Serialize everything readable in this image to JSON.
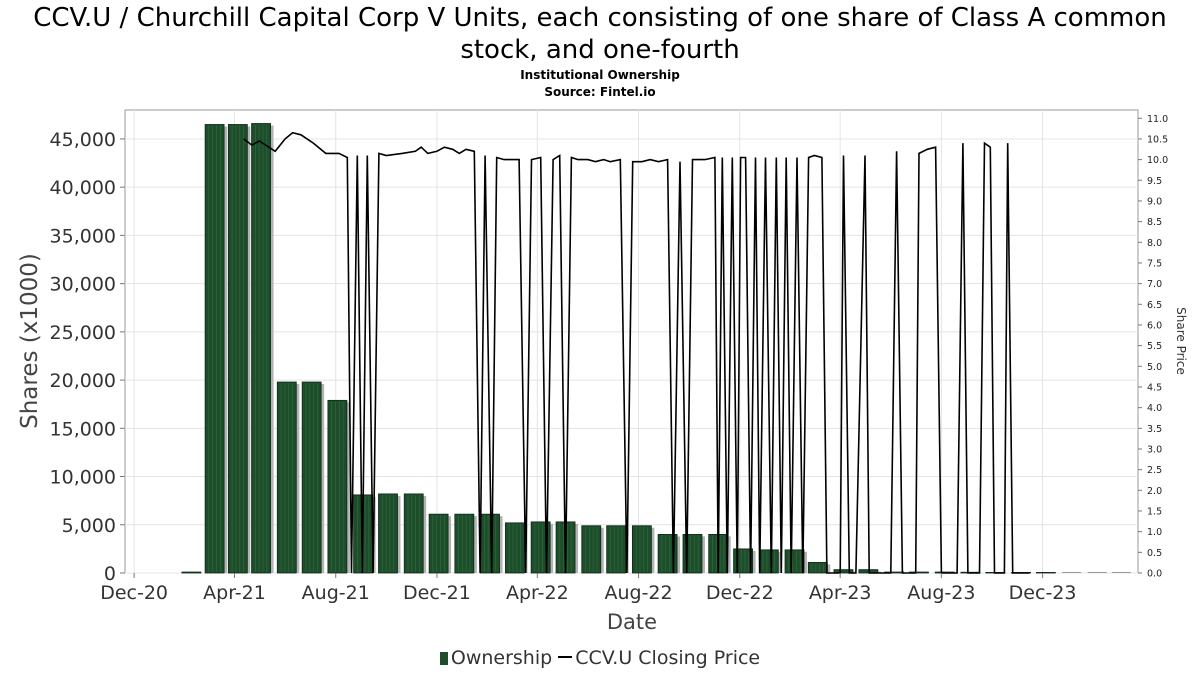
{
  "chart_data": {
    "type": "bar",
    "title": "CCV.U / Churchill Capital Corp V Units, each consisting of one share of Class A common stock, and one-fourth",
    "subtitle1": "Institutional Ownership",
    "subtitle2": "Source: Fintel.io",
    "xlabel": "Date",
    "ylabel": "Shares (x1000)",
    "y2label": "Share Price",
    "ylim": [
      0,
      48000
    ],
    "y2lim": [
      0,
      11.2
    ],
    "xlim": [
      "2020-11-20",
      "2024-03-25"
    ],
    "x_ticks": [
      {
        "date": "2020-12-01",
        "label": "Dec-20"
      },
      {
        "date": "2021-04-01",
        "label": "Apr-21"
      },
      {
        "date": "2021-08-01",
        "label": "Aug-21"
      },
      {
        "date": "2021-12-01",
        "label": "Dec-21"
      },
      {
        "date": "2022-04-01",
        "label": "Apr-22"
      },
      {
        "date": "2022-08-01",
        "label": "Aug-22"
      },
      {
        "date": "2022-12-01",
        "label": "Dec-22"
      },
      {
        "date": "2023-04-01",
        "label": "Apr-23"
      },
      {
        "date": "2023-08-01",
        "label": "Aug-23"
      },
      {
        "date": "2023-12-01",
        "label": "Dec-23"
      }
    ],
    "y_ticks": [
      0,
      5000,
      10000,
      15000,
      20000,
      25000,
      30000,
      35000,
      40000,
      45000
    ],
    "y_tick_labels": [
      "0",
      "5,000",
      "10,000",
      "15,000",
      "20,000",
      "25,000",
      "30,000",
      "35,000",
      "40,000",
      "45,000"
    ],
    "y2_ticks": [
      "0.0",
      "0.5",
      "1.0",
      "1.5",
      "2.0",
      "2.5",
      "3.0",
      "3.5",
      "4.0",
      "4.5",
      "5.0",
      "5.5",
      "6.0",
      "6.5",
      "7.0",
      "7.5",
      "8.0",
      "8.5",
      "9.0",
      "9.5",
      "10.0",
      "10.5",
      "11.0"
    ],
    "series": [
      {
        "name": "Ownership",
        "kind": "bar",
        "color": "#1e4d2b",
        "points": [
          {
            "x": "2021-02-08",
            "y": 100
          },
          {
            "x": "2021-03-08",
            "y": 46500
          },
          {
            "x": "2021-04-05",
            "y": 46500
          },
          {
            "x": "2021-05-03",
            "y": 46600
          },
          {
            "x": "2021-06-03",
            "y": 19800
          },
          {
            "x": "2021-07-03",
            "y": 19800
          },
          {
            "x": "2021-08-03",
            "y": 17900
          },
          {
            "x": "2021-09-03",
            "y": 8100
          },
          {
            "x": "2021-10-03",
            "y": 8200
          },
          {
            "x": "2021-11-03",
            "y": 8200
          },
          {
            "x": "2021-12-03",
            "y": 6100
          },
          {
            "x": "2022-01-03",
            "y": 6100
          },
          {
            "x": "2022-02-03",
            "y": 6100
          },
          {
            "x": "2022-03-05",
            "y": 5200
          },
          {
            "x": "2022-04-05",
            "y": 5300
          },
          {
            "x": "2022-05-05",
            "y": 5300
          },
          {
            "x": "2022-06-05",
            "y": 4900
          },
          {
            "x": "2022-07-05",
            "y": 4900
          },
          {
            "x": "2022-08-05",
            "y": 4900
          },
          {
            "x": "2022-09-05",
            "y": 4000
          },
          {
            "x": "2022-10-05",
            "y": 4000
          },
          {
            "x": "2022-11-05",
            "y": 4000
          },
          {
            "x": "2022-12-05",
            "y": 2500
          },
          {
            "x": "2023-01-05",
            "y": 2400
          },
          {
            "x": "2023-02-05",
            "y": 2400
          },
          {
            "x": "2023-03-05",
            "y": 1100
          },
          {
            "x": "2023-04-05",
            "y": 350
          },
          {
            "x": "2023-05-05",
            "y": 350
          },
          {
            "x": "2023-06-05",
            "y": 100
          },
          {
            "x": "2023-07-05",
            "y": 100
          },
          {
            "x": "2023-08-05",
            "y": 100
          },
          {
            "x": "2023-09-05",
            "y": 80
          },
          {
            "x": "2023-10-05",
            "y": 60
          },
          {
            "x": "2023-11-05",
            "y": 60
          },
          {
            "x": "2023-12-05",
            "y": 60
          },
          {
            "x": "2024-01-05",
            "y": 50
          },
          {
            "x": "2024-02-05",
            "y": 40
          },
          {
            "x": "2024-03-05",
            "y": 40
          }
        ]
      },
      {
        "name": "CCV.U Closing Price",
        "kind": "line",
        "axis": "right",
        "color": "#000000",
        "points": [
          {
            "x": "2021-04-12",
            "y": 10.5
          },
          {
            "x": "2021-04-22",
            "y": 10.35
          },
          {
            "x": "2021-05-01",
            "y": 10.45
          },
          {
            "x": "2021-05-20",
            "y": 10.2
          },
          {
            "x": "2021-06-01",
            "y": 10.5
          },
          {
            "x": "2021-06-10",
            "y": 10.65
          },
          {
            "x": "2021-06-20",
            "y": 10.6
          },
          {
            "x": "2021-07-05",
            "y": 10.4
          },
          {
            "x": "2021-07-20",
            "y": 10.15
          },
          {
            "x": "2021-08-05",
            "y": 10.15
          },
          {
            "x": "2021-08-15",
            "y": 10.05
          },
          {
            "x": "2021-08-20",
            "y": 0.0
          },
          {
            "x": "2021-08-27",
            "y": 10.1
          },
          {
            "x": "2021-09-02",
            "y": 0.0
          },
          {
            "x": "2021-09-08",
            "y": 10.1
          },
          {
            "x": "2021-09-15",
            "y": 0.0
          },
          {
            "x": "2021-09-22",
            "y": 10.15
          },
          {
            "x": "2021-10-01",
            "y": 10.1
          },
          {
            "x": "2021-10-20",
            "y": 10.15
          },
          {
            "x": "2021-11-05",
            "y": 10.2
          },
          {
            "x": "2021-11-12",
            "y": 10.3
          },
          {
            "x": "2021-11-20",
            "y": 10.15
          },
          {
            "x": "2021-12-01",
            "y": 10.2
          },
          {
            "x": "2021-12-10",
            "y": 10.3
          },
          {
            "x": "2021-12-20",
            "y": 10.25
          },
          {
            "x": "2021-12-28",
            "y": 10.15
          },
          {
            "x": "2022-01-05",
            "y": 10.25
          },
          {
            "x": "2022-01-15",
            "y": 10.2
          },
          {
            "x": "2022-01-22",
            "y": 0.0
          },
          {
            "x": "2022-01-28",
            "y": 10.1
          },
          {
            "x": "2022-02-05",
            "y": 0.0
          },
          {
            "x": "2022-02-11",
            "y": 10.05
          },
          {
            "x": "2022-02-20",
            "y": 10.0
          },
          {
            "x": "2022-03-01",
            "y": 10.0
          },
          {
            "x": "2022-03-10",
            "y": 10.0
          },
          {
            "x": "2022-03-18",
            "y": 0.0
          },
          {
            "x": "2022-03-25",
            "y": 10.0
          },
          {
            "x": "2022-04-05",
            "y": 10.05
          },
          {
            "x": "2022-04-12",
            "y": 0.0
          },
          {
            "x": "2022-04-20",
            "y": 10.0
          },
          {
            "x": "2022-04-28",
            "y": 10.1
          },
          {
            "x": "2022-05-05",
            "y": 0.0
          },
          {
            "x": "2022-05-12",
            "y": 10.05
          },
          {
            "x": "2022-05-20",
            "y": 10.0
          },
          {
            "x": "2022-06-01",
            "y": 10.0
          },
          {
            "x": "2022-06-10",
            "y": 9.95
          },
          {
            "x": "2022-06-20",
            "y": 10.0
          },
          {
            "x": "2022-06-28",
            "y": 9.95
          },
          {
            "x": "2022-07-10",
            "y": 10.0
          },
          {
            "x": "2022-07-18",
            "y": 0.0
          },
          {
            "x": "2022-07-25",
            "y": 9.95
          },
          {
            "x": "2022-08-05",
            "y": 9.95
          },
          {
            "x": "2022-08-15",
            "y": 10.0
          },
          {
            "x": "2022-08-25",
            "y": 9.95
          },
          {
            "x": "2022-09-05",
            "y": 10.0
          },
          {
            "x": "2022-09-12",
            "y": 0.0
          },
          {
            "x": "2022-09-20",
            "y": 9.95
          },
          {
            "x": "2022-09-28",
            "y": 0.0
          },
          {
            "x": "2022-10-05",
            "y": 10.0
          },
          {
            "x": "2022-10-20",
            "y": 10.0
          },
          {
            "x": "2022-11-01",
            "y": 10.05
          },
          {
            "x": "2022-11-05",
            "y": 0.0
          },
          {
            "x": "2022-11-10",
            "y": 10.05
          },
          {
            "x": "2022-11-16",
            "y": 0.0
          },
          {
            "x": "2022-11-22",
            "y": 10.05
          },
          {
            "x": "2022-11-28",
            "y": 0.0
          },
          {
            "x": "2022-12-02",
            "y": 10.05
          },
          {
            "x": "2022-12-08",
            "y": 10.05
          },
          {
            "x": "2022-12-14",
            "y": 0.0
          },
          {
            "x": "2022-12-20",
            "y": 10.05
          },
          {
            "x": "2022-12-25",
            "y": 0.0
          },
          {
            "x": "2023-01-01",
            "y": 10.05
          },
          {
            "x": "2023-01-08",
            "y": 0.0
          },
          {
            "x": "2023-01-14",
            "y": 10.05
          },
          {
            "x": "2023-01-20",
            "y": 0.0
          },
          {
            "x": "2023-01-26",
            "y": 10.05
          },
          {
            "x": "2023-02-01",
            "y": 0.0
          },
          {
            "x": "2023-02-08",
            "y": 10.05
          },
          {
            "x": "2023-02-15",
            "y": 0.0
          },
          {
            "x": "2023-02-22",
            "y": 10.05
          },
          {
            "x": "2023-03-01",
            "y": 10.1
          },
          {
            "x": "2023-03-10",
            "y": 10.05
          },
          {
            "x": "2023-03-16",
            "y": 0.0
          },
          {
            "x": "2023-03-25",
            "y": 0.0
          },
          {
            "x": "2023-04-01",
            "y": 0.0
          },
          {
            "x": "2023-04-05",
            "y": 10.1
          },
          {
            "x": "2023-04-12",
            "y": 0.0
          },
          {
            "x": "2023-04-20",
            "y": 0.0
          },
          {
            "x": "2023-05-01",
            "y": 10.1
          },
          {
            "x": "2023-05-06",
            "y": 0.0
          },
          {
            "x": "2023-05-25",
            "y": 0.0
          },
          {
            "x": "2023-06-01",
            "y": 0.0
          },
          {
            "x": "2023-06-08",
            "y": 10.2
          },
          {
            "x": "2023-06-15",
            "y": 0.0
          },
          {
            "x": "2023-07-01",
            "y": 0.0
          },
          {
            "x": "2023-07-05",
            "y": 10.15
          },
          {
            "x": "2023-07-15",
            "y": 10.25
          },
          {
            "x": "2023-07-25",
            "y": 10.3
          },
          {
            "x": "2023-08-01",
            "y": 0.0
          },
          {
            "x": "2023-08-08",
            "y": 0.0
          },
          {
            "x": "2023-08-20",
            "y": 0.0
          },
          {
            "x": "2023-08-27",
            "y": 10.4
          },
          {
            "x": "2023-09-02",
            "y": 0.0
          },
          {
            "x": "2023-09-10",
            "y": 0.0
          },
          {
            "x": "2023-09-16",
            "y": 0.0
          },
          {
            "x": "2023-09-22",
            "y": 10.4
          },
          {
            "x": "2023-09-29",
            "y": 10.3
          },
          {
            "x": "2023-10-04",
            "y": 0.0
          },
          {
            "x": "2023-10-10",
            "y": 0.0
          },
          {
            "x": "2023-10-16",
            "y": 0.0
          },
          {
            "x": "2023-10-20",
            "y": 10.4
          },
          {
            "x": "2023-10-26",
            "y": 0.0
          },
          {
            "x": "2023-11-15",
            "y": 0.0
          }
        ]
      }
    ],
    "grid": true,
    "legend_position": "bottom"
  },
  "legend": {
    "ownership_label": "Ownership",
    "price_label": "CCV.U Closing Price"
  }
}
